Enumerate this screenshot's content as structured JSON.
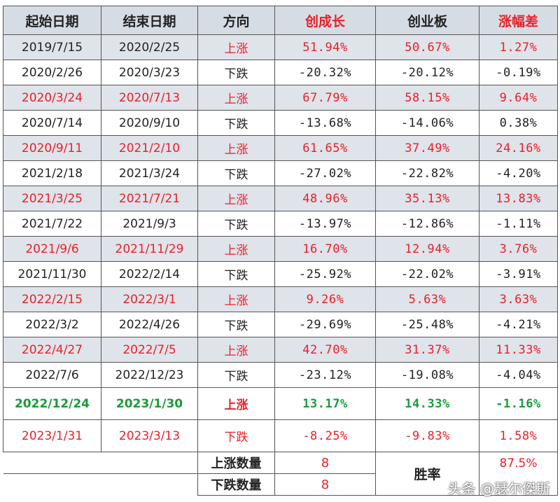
{
  "headers": [
    {
      "label": "起始日期",
      "hl": false
    },
    {
      "label": "结束日期",
      "hl": false
    },
    {
      "label": "方向",
      "hl": false
    },
    {
      "label": "创成长",
      "hl": true
    },
    {
      "label": "创业板",
      "hl": false
    },
    {
      "label": "涨幅差",
      "hl": true
    }
  ],
  "rows": [
    {
      "start": "2019/7/15",
      "end": "2020/2/25",
      "dir": "上涨",
      "a": "51.94%",
      "b": "50.67%",
      "diff": "1.27%",
      "style": "up-black-dates"
    },
    {
      "start": "2020/2/26",
      "end": "2020/3/23",
      "dir": "下跌",
      "a": "-20.32%",
      "b": "-20.12%",
      "diff": "-0.19%",
      "style": "down"
    },
    {
      "start": "2020/3/24",
      "end": "2020/7/13",
      "dir": "上涨",
      "a": "67.79%",
      "b": "58.15%",
      "diff": "9.64%",
      "style": "up"
    },
    {
      "start": "2020/7/14",
      "end": "2020/9/10",
      "dir": "下跌",
      "a": "-13.68%",
      "b": "-14.06%",
      "diff": "0.38%",
      "style": "down"
    },
    {
      "start": "2020/9/11",
      "end": "2021/2/10",
      "dir": "上涨",
      "a": "61.65%",
      "b": "37.49%",
      "diff": "24.16%",
      "style": "up"
    },
    {
      "start": "2021/2/18",
      "end": "2021/3/24",
      "dir": "下跌",
      "a": "-27.02%",
      "b": "-22.82%",
      "diff": "-4.20%",
      "style": "down"
    },
    {
      "start": "2021/3/25",
      "end": "2021/7/21",
      "dir": "上涨",
      "a": "48.96%",
      "b": "35.13%",
      "diff": "13.83%",
      "style": "up"
    },
    {
      "start": "2021/7/22",
      "end": "2021/9/3",
      "dir": "下跌",
      "a": "-13.97%",
      "b": "-12.86%",
      "diff": "-1.11%",
      "style": "down"
    },
    {
      "start": "2021/9/6",
      "end": "2021/11/29",
      "dir": "上涨",
      "a": "16.70%",
      "b": "12.94%",
      "diff": "3.76%",
      "style": "up"
    },
    {
      "start": "2021/11/30",
      "end": "2022/2/14",
      "dir": "下跌",
      "a": "-25.92%",
      "b": "-22.02%",
      "diff": "-3.91%",
      "style": "down"
    },
    {
      "start": "2022/2/15",
      "end": "2022/3/1",
      "dir": "上涨",
      "a": "9.26%",
      "b": "5.63%",
      "diff": "3.63%",
      "style": "up"
    },
    {
      "start": "2022/3/2",
      "end": "2022/4/26",
      "dir": "下跌",
      "a": "-29.69%",
      "b": "-25.48%",
      "diff": "-4.21%",
      "style": "down"
    },
    {
      "start": "2022/4/27",
      "end": "2022/7/5",
      "dir": "上涨",
      "a": "42.70%",
      "b": "31.37%",
      "diff": "11.33%",
      "style": "up"
    },
    {
      "start": "2022/7/6",
      "end": "2022/12/23",
      "dir": "下跌",
      "a": "-23.12%",
      "b": "-19.08%",
      "diff": "-4.04%",
      "style": "down"
    },
    {
      "start": "2022/12/24",
      "end": "2023/1/30",
      "dir": "上涨",
      "a": "13.17%",
      "b": "14.33%",
      "diff": "-1.16%",
      "style": "green"
    },
    {
      "start": "2023/1/31",
      "end": "2023/3/13",
      "dir": "下跌",
      "a": "-8.25%",
      "b": "-9.83%",
      "diff": "1.58%",
      "style": "last"
    }
  ],
  "summary": {
    "up_label": "上涨数量",
    "up_count": "8",
    "down_label": "下跌数量",
    "down_count": "8",
    "win_label": "胜率",
    "win_value": "87.5%"
  },
  "watermark": "头条 @瑟尔傑斯",
  "colors": {
    "red": "#e8202a",
    "green": "#1a9a3c",
    "header_bg": "#d6dce4",
    "shade_bg": "#dfe3ea"
  }
}
